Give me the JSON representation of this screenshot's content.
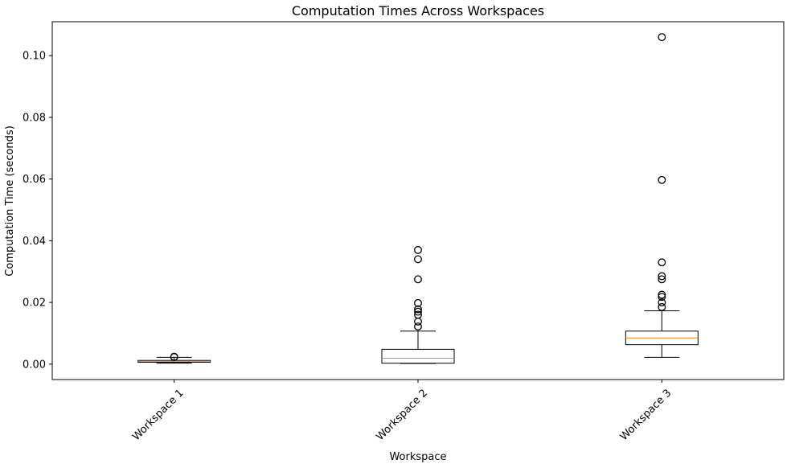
{
  "chart_data": {
    "type": "box",
    "title": "Computation Times Across Workspaces",
    "xlabel": "Workspace",
    "ylabel": "Computation Time (seconds)",
    "ylim": [
      -0.005,
      0.111
    ],
    "yticks": [
      0.0,
      0.02,
      0.04,
      0.06,
      0.08,
      0.1
    ],
    "ytick_labels": [
      "0.00",
      "0.02",
      "0.04",
      "0.06",
      "0.08",
      "0.10"
    ],
    "grid": false,
    "categories": [
      "Workspace 1",
      "Workspace 2",
      "Workspace 3"
    ],
    "series": [
      {
        "whisker_low": 0.0003,
        "q1": 0.0006,
        "median": 0.0009,
        "q3": 0.0012,
        "whisker_high": 0.0022,
        "outliers": [
          0.0023,
          0.0024
        ]
      },
      {
        "whisker_low": 0.0002,
        "q1": 0.0003,
        "median": 0.0019,
        "q3": 0.0048,
        "whisker_high": 0.0107,
        "outliers": [
          0.0122,
          0.0138,
          0.016,
          0.017,
          0.0178,
          0.0198,
          0.0275,
          0.034,
          0.037
        ]
      },
      {
        "whisker_low": 0.0022,
        "q1": 0.0063,
        "median": 0.0085,
        "q3": 0.0107,
        "whisker_high": 0.0173,
        "outliers": [
          0.0185,
          0.02,
          0.0218,
          0.0225,
          0.0275,
          0.0285,
          0.033,
          0.0597,
          0.106
        ]
      }
    ],
    "colors": {
      "box": "#000000",
      "median": "#ff7f0e",
      "outlier": "#000000"
    }
  }
}
